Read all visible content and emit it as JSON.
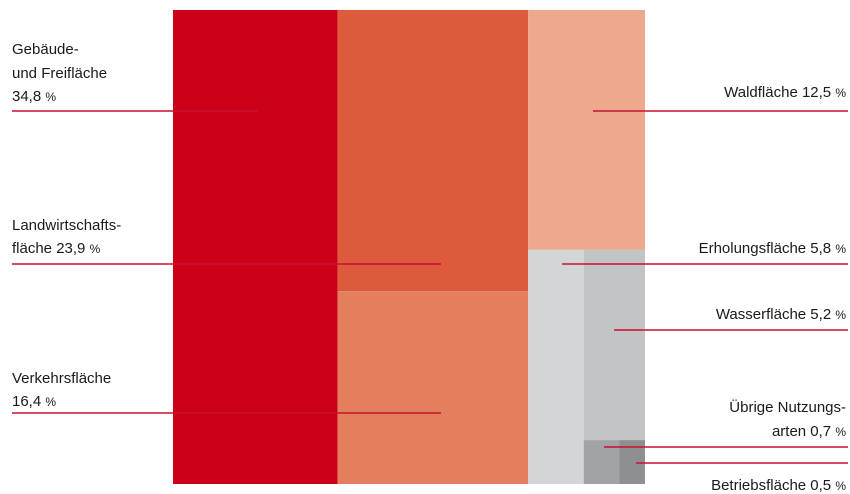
{
  "chart_data": {
    "type": "treemap",
    "unit": "%",
    "colors": {
      "Gebäude- und Freifläche": "#cc0019",
      "Landwirtschaftsfläche": "#dd5a3d",
      "Verkehrsfläche": "#e47f5e",
      "Waldfläche": "#eda88d",
      "Erholungsfläche": "#d4d5d6",
      "Wasserfläche": "#c3c4c5",
      "Übrige Nutzungsarten": "#a2a3a4",
      "Betriebsfläche": "#8e8f90",
      "leader": "#c8102e"
    },
    "series": [
      {
        "name": "Gebäude- und Freifläche",
        "value": 34.8,
        "label_lines": [
          "Gebäude-",
          "und Freifläche"
        ],
        "value_text": "34,8",
        "side": "left"
      },
      {
        "name": "Landwirtschaftsfläche",
        "value": 23.9,
        "label_lines": [
          "Landwirtschafts-",
          "fläche"
        ],
        "value_text": "23,9",
        "side": "left"
      },
      {
        "name": "Verkehrsfläche",
        "value": 16.4,
        "label_lines": [
          "Verkehrsfläche"
        ],
        "value_text": "16,4",
        "side": "left"
      },
      {
        "name": "Waldfläche",
        "value": 12.5,
        "label_lines": [
          "Waldfläche"
        ],
        "value_text": "12,5",
        "side": "right"
      },
      {
        "name": "Erholungsfläche",
        "value": 5.8,
        "label_lines": [
          "Erholungsfläche"
        ],
        "value_text": "5,8",
        "side": "right"
      },
      {
        "name": "Wasserfläche",
        "value": 5.2,
        "label_lines": [
          "Wasserfläche"
        ],
        "value_text": "5,2",
        "side": "right"
      },
      {
        "name": "Übrige Nutzungsarten",
        "value": 0.7,
        "label_lines": [
          "Übrige Nutzungs-",
          "arten"
        ],
        "value_text": "0,7",
        "side": "right"
      },
      {
        "name": "Betriebsfläche",
        "value": 0.5,
        "label_lines": [
          "Betriebsfläche"
        ],
        "value_text": "0,5",
        "side": "right"
      }
    ]
  }
}
